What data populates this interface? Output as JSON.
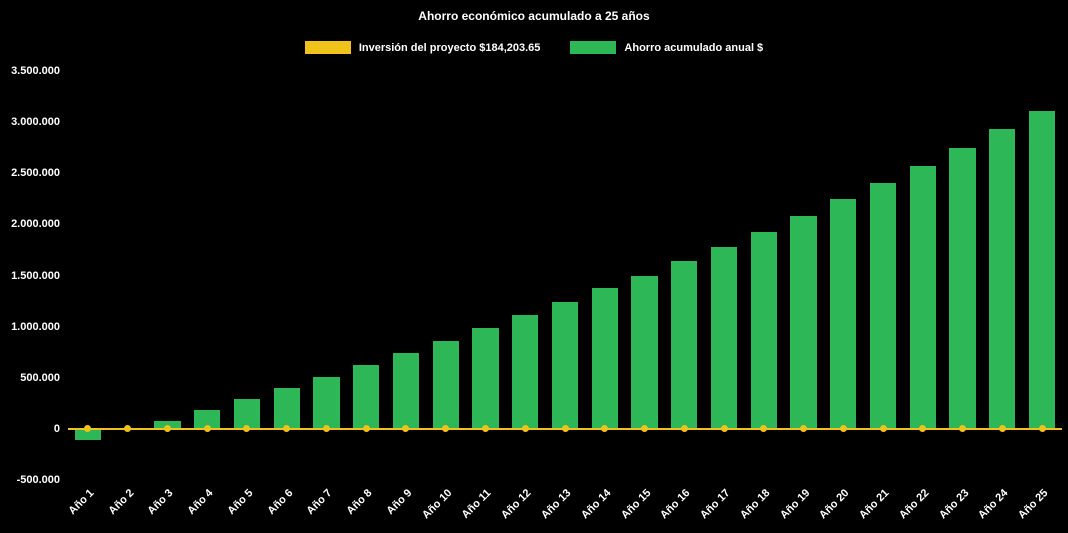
{
  "title": "Ahorro económico acumulado a 25 años",
  "legend": [
    {
      "label": "Inversión del proyecto $184,203.65",
      "color": "#EFC319"
    },
    {
      "label": "Ahorro acumulado anual $",
      "color": "#2DB757"
    }
  ],
  "colors": {
    "background": "#000000",
    "text": "#FFFFFF",
    "bar_green": "#2DB757",
    "line_yellow": "#EFC319"
  },
  "chart_data": {
    "type": "bar",
    "subtype": "bar-with-flat-line-overlay",
    "title": "Ahorro económico acumulado a 25 años",
    "categories": [
      "Año 1",
      "Año 2",
      "Año 3",
      "Año 4",
      "Año 5",
      "Año 6",
      "Año 7",
      "Año 8",
      "Año 9",
      "Año 10",
      "Año 11",
      "Año 12",
      "Año 13",
      "Año 14",
      "Año 15",
      "Año 16",
      "Año 17",
      "Año 18",
      "Año 19",
      "Año 20",
      "Año 21",
      "Año 22",
      "Año 23",
      "Año 24",
      "Año 25"
    ],
    "series": [
      {
        "name": "Ahorro acumulado anual $",
        "type": "bar",
        "color": "#2DB757",
        "values": [
          -110000,
          -15000,
          80000,
          180000,
          290000,
          400000,
          510000,
          620000,
          740000,
          860000,
          990000,
          1115000,
          1245000,
          1375000,
          1500000,
          1640000,
          1780000,
          1930000,
          2080000,
          2250000,
          2400000,
          2570000,
          2750000,
          2930000,
          3110000
        ]
      },
      {
        "name": "Inversión del proyecto $184,203.65",
        "type": "line",
        "color": "#EFC319",
        "marker": "circle",
        "investment_amount": 184203.65,
        "plotted_value": 0
      }
    ],
    "y_axis": {
      "min": -500000,
      "max": 3500000,
      "tick_step": 500000,
      "ticks": [
        {
          "value": 3500000,
          "label": "3.500.000"
        },
        {
          "value": 3000000,
          "label": "3.000.000"
        },
        {
          "value": 2500000,
          "label": "2.500.000"
        },
        {
          "value": 2000000,
          "label": "2.000.000"
        },
        {
          "value": 1500000,
          "label": "1.500.000"
        },
        {
          "value": 1000000,
          "label": "1.000.000"
        },
        {
          "value": 500000,
          "label": "500.000"
        },
        {
          "value": 0,
          "label": "0"
        },
        {
          "value": -500000,
          "label": "-500.000"
        }
      ]
    },
    "x_axis": {
      "label_rotation_deg": -45
    },
    "grid": false,
    "legend_position": "top",
    "background": "#000000"
  }
}
